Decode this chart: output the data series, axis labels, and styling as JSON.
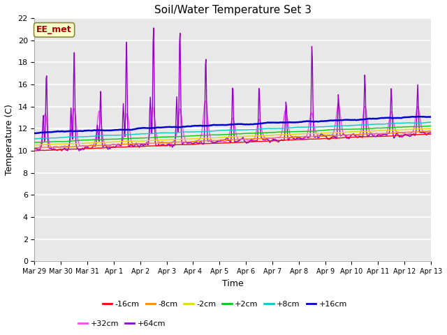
{
  "title": "Soil/Water Temperature Set 3",
  "xlabel": "Time",
  "ylabel": "Temperature (C)",
  "ylim": [
    0,
    22
  ],
  "yticks": [
    0,
    2,
    4,
    6,
    8,
    10,
    12,
    14,
    16,
    18,
    20,
    22
  ],
  "num_points": 720,
  "fig_bg": "#ffffff",
  "plot_bg_upper": "#e8e8e8",
  "plot_bg_lower": "#f0f0f0",
  "series_colors": {
    "-16cm": "#ff0000",
    "-8cm": "#ff8800",
    "-2cm": "#dddd00",
    "+2cm": "#00cc00",
    "+8cm": "#00cccc",
    "+16cm": "#0000cc",
    "+32cm": "#ff44ff",
    "+64cm": "#9900cc"
  },
  "watermark_text": "EE_met",
  "watermark_bg": "#ffffcc",
  "watermark_border": "#aa0000",
  "xtick_labels": [
    "Mar 29",
    "Mar 30",
    "Mar 31",
    "Apr 1",
    "Apr 2",
    "Apr 3",
    "Apr 4",
    "Apr 5",
    "Apr 6",
    "Apr 7",
    "Apr 8",
    "Apr 9",
    "Apr 10",
    "Apr 11",
    "Apr 12",
    "Apr 13"
  ],
  "legend_row1": [
    "-16cm",
    "-8cm",
    "-2cm",
    "+2cm",
    "+8cm",
    "+16cm"
  ],
  "legend_row2": [
    "+32cm",
    "+64cm"
  ]
}
